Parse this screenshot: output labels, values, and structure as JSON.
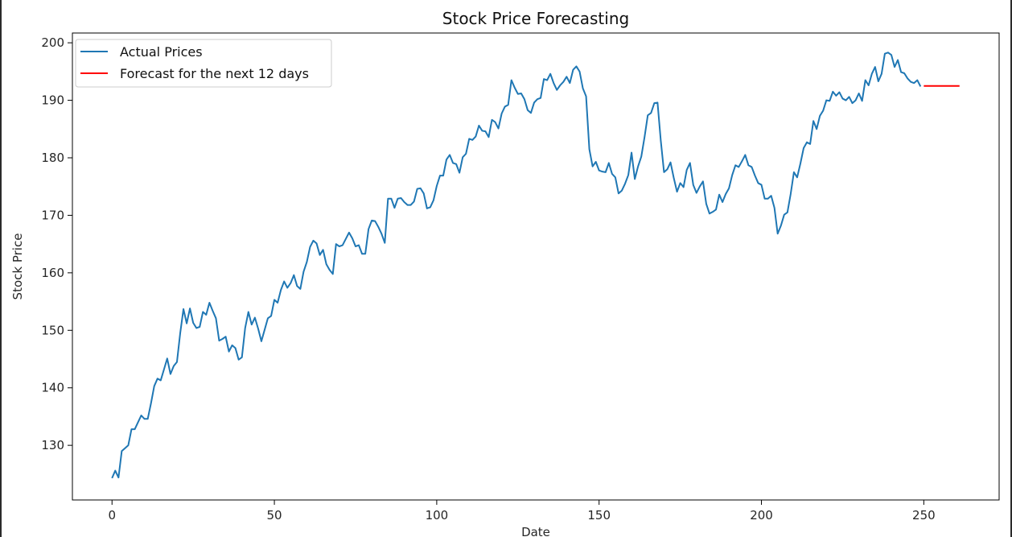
{
  "chart_data": {
    "type": "line",
    "title": "Stock Price Forecasting",
    "xlabel": "Date",
    "ylabel": "Stock Price",
    "xlim": [
      -12.2,
      273.2
    ],
    "ylim": [
      120.5,
      201.7
    ],
    "xticks": [
      0,
      50,
      100,
      150,
      200,
      250
    ],
    "yticks": [
      130,
      140,
      150,
      160,
      170,
      180,
      190,
      200
    ],
    "grid": false,
    "legend": "top-left",
    "series": [
      {
        "name": "Actual Prices",
        "color": "#1f77b4",
        "x_start": 0,
        "values": [
          124.3,
          125.6,
          124.4,
          129.0,
          129.5,
          130.0,
          132.8,
          132.8,
          134.0,
          135.2,
          134.6,
          134.6,
          137.3,
          140.3,
          141.6,
          141.3,
          143.2,
          145.1,
          142.4,
          143.8,
          144.5,
          149.5,
          153.7,
          151.2,
          153.8,
          151.3,
          150.4,
          150.6,
          153.2,
          152.7,
          154.8,
          153.4,
          152.1,
          148.2,
          148.5,
          148.9,
          146.3,
          147.4,
          146.9,
          144.9,
          145.3,
          150.4,
          153.2,
          151.0,
          152.2,
          150.3,
          148.1,
          150.1,
          152.1,
          152.5,
          155.3,
          154.8,
          157.0,
          158.5,
          157.4,
          158.2,
          159.6,
          157.7,
          157.2,
          160.2,
          161.9,
          164.5,
          165.6,
          165.1,
          163.1,
          164.0,
          161.5,
          160.5,
          159.8,
          165.0,
          164.6,
          164.8,
          165.9,
          167.0,
          166.0,
          164.6,
          164.8,
          163.3,
          163.3,
          167.6,
          169.1,
          169.0,
          168.0,
          166.8,
          165.2,
          172.9,
          172.9,
          171.3,
          172.9,
          173.0,
          172.3,
          171.8,
          171.8,
          172.4,
          174.6,
          174.7,
          173.8,
          171.2,
          171.4,
          172.6,
          175.1,
          176.9,
          176.9,
          179.7,
          180.5,
          179.1,
          178.9,
          177.4,
          180.1,
          180.7,
          183.3,
          183.1,
          183.7,
          185.6,
          184.7,
          184.6,
          183.6,
          186.6,
          186.2,
          185.1,
          187.7,
          188.9,
          189.2,
          193.5,
          192.2,
          191.1,
          191.2,
          190.2,
          188.3,
          187.8,
          189.6,
          190.2,
          190.4,
          193.7,
          193.5,
          194.6,
          193.0,
          191.8,
          192.6,
          193.2,
          194.1,
          193.0,
          195.3,
          195.9,
          195.0,
          192.1,
          190.7,
          181.5,
          178.5,
          179.3,
          177.8,
          177.6,
          177.5,
          179.1,
          177.2,
          176.6,
          173.8,
          174.3,
          175.5,
          177.0,
          180.9,
          176.3,
          178.5,
          180.2,
          183.6,
          187.4,
          187.8,
          189.5,
          189.6,
          183.0,
          177.5,
          178.0,
          179.2,
          176.5,
          174.1,
          175.6,
          174.9,
          177.9,
          179.1,
          175.3,
          173.9,
          175.0,
          175.9,
          172.0,
          170.3,
          170.6,
          171.0,
          173.6,
          172.3,
          173.7,
          174.7,
          177.0,
          178.7,
          178.4,
          179.4,
          180.5,
          178.7,
          178.4,
          176.9,
          175.6,
          175.3,
          172.9,
          172.9,
          173.4,
          171.3,
          166.8,
          168.2,
          170.1,
          170.5,
          173.7,
          177.5,
          176.6,
          179.0,
          181.7,
          182.7,
          182.4,
          186.4,
          185.0,
          187.3,
          188.2,
          190.0,
          189.9,
          191.5,
          190.8,
          191.4,
          190.3,
          190.0,
          190.6,
          189.5,
          190.0,
          191.2,
          189.9,
          193.5,
          192.6,
          194.6,
          195.8,
          193.3,
          194.6,
          198.1,
          198.3,
          197.9,
          195.8,
          197.0,
          194.9,
          194.7,
          193.8,
          193.2,
          193.0,
          193.5,
          192.4
        ]
      },
      {
        "name": "Forecast for the next 12 days",
        "color": "#ff0000",
        "x_start": 250,
        "values": [
          192.5,
          192.5,
          192.5,
          192.5,
          192.5,
          192.5,
          192.5,
          192.5,
          192.5,
          192.5,
          192.5,
          192.5
        ]
      }
    ]
  }
}
